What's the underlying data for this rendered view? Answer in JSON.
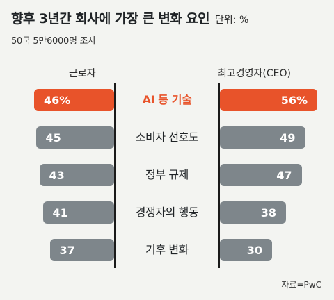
{
  "header": {
    "title": "향후 3년간 회사에 가장 큰 변화 요인",
    "unit": "단위: %",
    "subtitle": "50국 5만6000명 조사"
  },
  "legend": {
    "left": "근로자",
    "right": "최고경영자(CEO)"
  },
  "source": "자료=PwC",
  "colors": {
    "highlight": "#e8532a",
    "bar": "#7e868b",
    "background": "#f3f4f1"
  },
  "chart_data": {
    "type": "bar",
    "title": "향후 3년간 회사에 가장 큰 변화 요인",
    "categories": [
      "AI 등 기술",
      "소비자 선호도",
      "정부 규제",
      "경쟁자의 행동",
      "기후 변화"
    ],
    "series": [
      {
        "name": "근로자",
        "values": [
          46,
          45,
          43,
          41,
          37
        ]
      },
      {
        "name": "최고경영자(CEO)",
        "values": [
          56,
          49,
          47,
          38,
          30
        ]
      }
    ],
    "value_labels": {
      "근로자": [
        "46%",
        "45",
        "43",
        "41",
        "37"
      ],
      "최고경영자(CEO)": [
        "56%",
        "49",
        "47",
        "38",
        "30"
      ]
    },
    "highlight_index": 0,
    "xlim": [
      0,
      60
    ],
    "grid": false
  }
}
